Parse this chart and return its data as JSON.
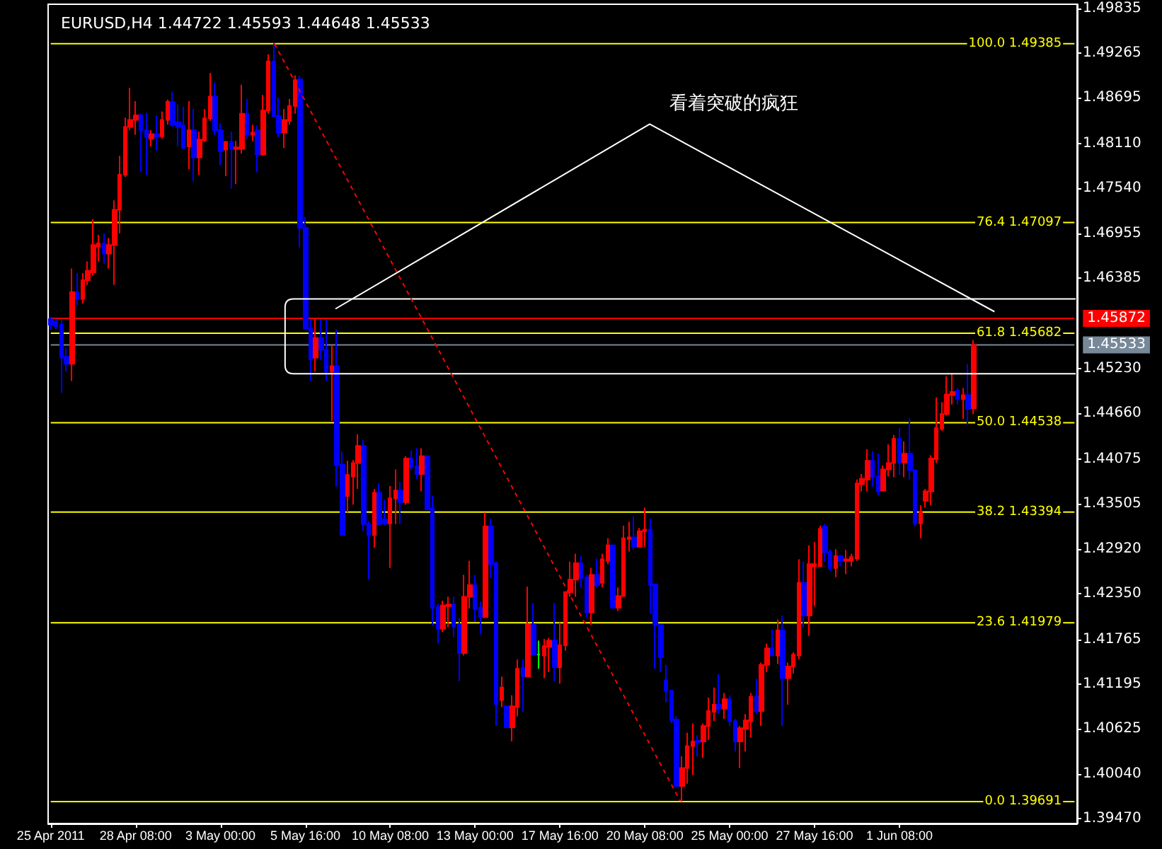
{
  "chart_data": {
    "type": "candlestick",
    "title": "EURUSD,H4 1.44722 1.45593 1.44648 1.45533",
    "annotations": [
      "看着突破的疯狂"
    ],
    "categories": [
      "25 Apr 2011",
      null,
      null,
      null,
      null,
      null,
      null,
      null,
      null,
      null,
      null,
      null,
      null,
      null,
      null,
      null,
      "28 Apr 08:00",
      null,
      null,
      null,
      null,
      null,
      null,
      null,
      null,
      null,
      null,
      null,
      null,
      null,
      null,
      null,
      "3 May 00:00",
      null,
      null,
      null,
      null,
      null,
      null,
      null,
      null,
      null,
      null,
      null,
      null,
      null,
      null,
      null,
      "5 May 16:00",
      null,
      null,
      null,
      null,
      null,
      null,
      null,
      null,
      null,
      null,
      null,
      null,
      null,
      null,
      null,
      "10 May 08:00",
      null,
      null,
      null,
      null,
      null,
      null,
      null,
      null,
      null,
      null,
      null,
      null,
      null,
      null,
      null,
      "13 May 00:00",
      null,
      null,
      null,
      null,
      null,
      null,
      null,
      null,
      null,
      null,
      null,
      null,
      null,
      null,
      null,
      "17 May 16:00",
      null,
      null,
      null,
      null,
      null,
      null,
      null,
      null,
      null,
      null,
      null,
      null,
      null,
      null,
      null,
      "20 May 08:00",
      null,
      null,
      null,
      null,
      null,
      null,
      null,
      null,
      null,
      null,
      null,
      null,
      null,
      null,
      null,
      "25 May 00:00",
      null,
      null,
      null,
      null,
      null,
      null,
      null,
      null,
      null,
      null,
      null,
      null,
      null,
      null,
      null,
      "27 May 16:00",
      null,
      null,
      null,
      null,
      null,
      null,
      null,
      null,
      null,
      null,
      null,
      null,
      null,
      null,
      null,
      "1 Jun 08:00",
      null,
      null,
      null,
      null,
      null,
      null,
      null,
      null,
      null,
      null,
      null,
      null,
      null,
      null,
      null,
      null,
      null,
      null,
      null,
      null,
      null,
      null,
      null,
      null,
      null,
      null,
      null,
      null,
      null,
      null,
      null,
      null,
      null
    ],
    "ylim": [
      1.3941,
      1.4989
    ],
    "yticks": [
      1.49835,
      1.49265,
      1.48695,
      {
        "value": 1.4811,
        "label": "1.48110"
      },
      {
        "value": 1.4754,
        "label": "1.47540"
      },
      1.46955,
      1.46385,
      {
        "value": 1.4523,
        "label": "1.45230"
      },
      {
        "value": 1.4466,
        "label": "1.44660"
      },
      1.44075,
      1.43505,
      {
        "value": 1.4292,
        "label": "1.42920"
      },
      {
        "value": 1.4235,
        "label": "1.42350"
      },
      1.41765,
      1.41195,
      1.40625,
      {
        "value": 1.4004,
        "label": "1.40040"
      },
      {
        "value": 1.3947,
        "label": "1.39470"
      }
    ],
    "ohlc": [
      [
        1.4586,
        1.4589,
        1.4573,
        1.4579
      ],
      [
        1.4583,
        1.4587,
        1.4573,
        1.4577
      ],
      [
        1.4579,
        1.4585,
        1.4492,
        1.4537
      ],
      [
        1.4538,
        1.4549,
        1.4519,
        1.4529
      ],
      [
        1.4529,
        1.4651,
        1.4507,
        1.4621
      ],
      [
        1.4621,
        1.4645,
        1.4603,
        1.4612
      ],
      [
        1.4612,
        1.4645,
        1.4606,
        1.4636
      ],
      [
        1.4636,
        1.466,
        1.463,
        1.4648
      ],
      [
        1.4646,
        1.4714,
        1.4642,
        1.4681
      ],
      [
        1.4679,
        1.4694,
        1.466,
        1.4683
      ],
      [
        1.4683,
        1.4696,
        1.4657,
        1.467
      ],
      [
        1.467,
        1.469,
        1.4651,
        1.4681
      ],
      [
        1.4681,
        1.4738,
        1.463,
        1.4726
      ],
      [
        1.4726,
        1.4795,
        1.4696,
        1.4771
      ],
      [
        1.4771,
        1.4844,
        1.4768,
        1.4832
      ],
      [
        1.4832,
        1.4882,
        1.4828,
        1.4841
      ],
      [
        1.4841,
        1.4865,
        1.4822,
        1.4847
      ],
      [
        1.4847,
        1.4849,
        1.4774,
        1.4828
      ],
      [
        1.4828,
        1.485,
        1.4771,
        1.4819
      ],
      [
        1.4817,
        1.4828,
        1.4807,
        1.4823
      ],
      [
        1.4823,
        1.4847,
        1.4802,
        1.482
      ],
      [
        1.482,
        1.4852,
        1.4817,
        1.4841
      ],
      [
        1.4841,
        1.4867,
        1.4835,
        1.4864
      ],
      [
        1.4864,
        1.4877,
        1.4832,
        1.4835
      ],
      [
        1.4838,
        1.4861,
        1.4807,
        1.4832
      ],
      [
        1.4834,
        1.4858,
        1.4804,
        1.4805
      ],
      [
        1.4807,
        1.4865,
        1.4778,
        1.4828
      ],
      [
        1.4828,
        1.4855,
        1.4762,
        1.4793
      ],
      [
        1.4793,
        1.4826,
        1.4771,
        1.4816
      ],
      [
        1.4815,
        1.4855,
        1.4813,
        1.4843
      ],
      [
        1.4843,
        1.4901,
        1.484,
        1.4871
      ],
      [
        1.4871,
        1.4889,
        1.4822,
        1.4828
      ],
      [
        1.4828,
        1.4837,
        1.4783,
        1.4801
      ],
      [
        1.4803,
        1.4814,
        1.4769,
        1.4813
      ],
      [
        1.4813,
        1.4826,
        1.4753,
        1.4804
      ],
      [
        1.4804,
        1.4814,
        1.4759,
        1.4806
      ],
      [
        1.4804,
        1.4886,
        1.4798,
        1.4849
      ],
      [
        1.4849,
        1.4868,
        1.4817,
        1.4822
      ],
      [
        1.4822,
        1.4835,
        1.4814,
        1.4825
      ],
      [
        1.4828,
        1.4834,
        1.4774,
        1.4797
      ],
      [
        1.4797,
        1.4873,
        1.4795,
        1.4853
      ],
      [
        1.4853,
        1.4925,
        1.4849,
        1.4916
      ],
      [
        1.4916,
        1.4939,
        1.4845,
        1.4846
      ],
      [
        1.4846,
        1.487,
        1.4819,
        1.4825
      ],
      [
        1.4825,
        1.4855,
        1.4805,
        1.4841
      ],
      [
        1.484,
        1.4868,
        1.4835,
        1.4859
      ],
      [
        1.4859,
        1.4898,
        1.4849,
        1.4892
      ],
      [
        1.4893,
        1.4898,
        1.4678,
        1.4703
      ],
      [
        1.4703,
        1.4717,
        1.4573,
        1.4574
      ],
      [
        1.4574,
        1.4586,
        1.4507,
        1.4535
      ],
      [
        1.4537,
        1.4586,
        1.4519,
        1.4562
      ],
      [
        1.4562,
        1.4586,
        1.4534,
        1.4547
      ],
      [
        1.4547,
        1.4586,
        1.4507,
        1.4519
      ],
      [
        1.4519,
        1.4552,
        1.4456,
        1.4526
      ],
      [
        1.4526,
        1.4573,
        1.4372,
        1.44
      ],
      [
        1.44,
        1.4417,
        1.431,
        1.431
      ],
      [
        1.436,
        1.4405,
        1.4339,
        1.4387
      ],
      [
        1.4385,
        1.4406,
        1.4349,
        1.4402
      ],
      [
        1.4402,
        1.4439,
        1.4369,
        1.4424
      ],
      [
        1.4424,
        1.4432,
        1.4315,
        1.4324
      ],
      [
        1.4324,
        1.4328,
        1.4253,
        1.431
      ],
      [
        1.431,
        1.4369,
        1.4294,
        1.4364
      ],
      [
        1.4364,
        1.4376,
        1.4323,
        1.4324
      ],
      [
        1.433,
        1.4355,
        1.4323,
        1.4325
      ],
      [
        1.4325,
        1.4373,
        1.4268,
        1.4357
      ],
      [
        1.4357,
        1.4394,
        1.4324,
        1.4367
      ],
      [
        1.4367,
        1.4378,
        1.4324,
        1.4352
      ],
      [
        1.4352,
        1.4411,
        1.4349,
        1.4408
      ],
      [
        1.4408,
        1.4418,
        1.4393,
        1.4397
      ],
      [
        1.4398,
        1.4421,
        1.4382,
        1.4388
      ],
      [
        1.4388,
        1.4421,
        1.4366,
        1.4411
      ],
      [
        1.4411,
        1.4412,
        1.4342,
        1.4343
      ],
      [
        1.4344,
        1.436,
        1.4195,
        1.4217
      ],
      [
        1.4218,
        1.4222,
        1.4171,
        1.419
      ],
      [
        1.419,
        1.4226,
        1.4186,
        1.422
      ],
      [
        1.4219,
        1.4231,
        1.4192,
        1.4221
      ],
      [
        1.4221,
        1.4231,
        1.418,
        1.4193
      ],
      [
        1.4196,
        1.4204,
        1.4123,
        1.4159
      ],
      [
        1.4159,
        1.4259,
        1.4156,
        1.4231
      ],
      [
        1.4231,
        1.4277,
        1.4216,
        1.4246
      ],
      [
        1.4246,
        1.4259,
        1.4199,
        1.4216
      ],
      [
        1.4217,
        1.4225,
        1.4183,
        1.4205
      ],
      [
        1.4205,
        1.4339,
        1.4204,
        1.4321
      ],
      [
        1.4321,
        1.4331,
        1.4256,
        1.4273
      ],
      [
        1.4274,
        1.4276,
        1.4066,
        1.4094
      ],
      [
        1.4099,
        1.4129,
        1.409,
        1.4115
      ],
      [
        1.4091,
        1.4092,
        1.4063,
        1.4064
      ],
      [
        1.4064,
        1.4105,
        1.4046,
        1.4091
      ],
      [
        1.409,
        1.4151,
        1.4078,
        1.4139
      ],
      [
        1.414,
        1.4151,
        1.4084,
        1.4129
      ],
      [
        1.4129,
        1.4244,
        1.4128,
        1.4196
      ],
      [
        1.4196,
        1.4223,
        1.4156,
        1.4157
      ],
      [
        1.4157,
        1.4175,
        1.4139,
        1.4157
      ],
      [
        1.4156,
        1.4177,
        1.4127,
        1.4168
      ],
      [
        1.4167,
        1.4178,
        1.4135,
        1.4175
      ],
      [
        1.4175,
        1.4223,
        1.4123,
        1.4141
      ],
      [
        1.4141,
        1.4198,
        1.412,
        1.4169
      ],
      [
        1.4169,
        1.4238,
        1.4162,
        1.4237
      ],
      [
        1.4237,
        1.4276,
        1.4231,
        1.4253
      ],
      [
        1.4253,
        1.4286,
        1.4231,
        1.4274
      ],
      [
        1.4274,
        1.4283,
        1.4243,
        1.4255
      ],
      [
        1.4256,
        1.4259,
        1.4204,
        1.4211
      ],
      [
        1.4211,
        1.4268,
        1.4195,
        1.4259
      ],
      [
        1.4259,
        1.428,
        1.4243,
        1.4246
      ],
      [
        1.4249,
        1.4286,
        1.4243,
        1.4279
      ],
      [
        1.4277,
        1.4306,
        1.4273,
        1.4297
      ],
      [
        1.4297,
        1.4298,
        1.4216,
        1.4217
      ],
      [
        1.4217,
        1.4243,
        1.4213,
        1.4232
      ],
      [
        1.4232,
        1.4322,
        1.4231,
        1.4306
      ],
      [
        1.4305,
        1.4327,
        1.4289,
        1.4307
      ],
      [
        1.4307,
        1.4334,
        1.4291,
        1.4295
      ],
      [
        1.4295,
        1.4319,
        1.4294,
        1.4315
      ],
      [
        1.4315,
        1.4345,
        1.4295,
        1.4317
      ],
      [
        1.4317,
        1.4331,
        1.421,
        1.4246
      ],
      [
        1.4247,
        1.4248,
        1.4139,
        1.4195
      ],
      [
        1.4195,
        1.4196,
        1.4135,
        1.4154
      ],
      [
        1.4124,
        1.4144,
        1.4096,
        1.4111
      ],
      [
        1.4111,
        1.4112,
        1.4069,
        1.4073
      ],
      [
        1.4074,
        1.4078,
        1.3988,
        1.3989
      ],
      [
        1.3989,
        1.4027,
        1.3969,
        1.4012
      ],
      [
        1.4012,
        1.4057,
        1.3992,
        1.404
      ],
      [
        1.404,
        1.4069,
        1.4003,
        1.4046
      ],
      [
        1.4047,
        1.4054,
        1.4027,
        1.4045
      ],
      [
        1.4046,
        1.4069,
        1.4025,
        1.4066
      ],
      [
        1.4066,
        1.4102,
        1.4048,
        1.4085
      ],
      [
        1.4084,
        1.4115,
        1.4072,
        1.4093
      ],
      [
        1.4093,
        1.4132,
        1.4081,
        1.4088
      ],
      [
        1.4088,
        1.4108,
        1.4075,
        1.41
      ],
      [
        1.41,
        1.4105,
        1.4066,
        1.4072
      ],
      [
        1.4072,
        1.4075,
        1.4033,
        1.4046
      ],
      [
        1.4046,
        1.4066,
        1.4012,
        1.4063
      ],
      [
        1.4062,
        1.4081,
        1.4033,
        1.4073
      ],
      [
        1.4072,
        1.4108,
        1.4051,
        1.4103
      ],
      [
        1.4104,
        1.4126,
        1.4081,
        1.4085
      ],
      [
        1.4085,
        1.4147,
        1.4066,
        1.4144
      ],
      [
        1.4144,
        1.4171,
        1.4135,
        1.4165
      ],
      [
        1.4165,
        1.4189,
        1.4155,
        1.4156
      ],
      [
        1.4156,
        1.4202,
        1.4145,
        1.4188
      ],
      [
        1.4188,
        1.4207,
        1.4066,
        1.4127
      ],
      [
        1.4127,
        1.4147,
        1.4093,
        1.4142
      ],
      [
        1.4142,
        1.416,
        1.4133,
        1.4157
      ],
      [
        1.4156,
        1.4279,
        1.4151,
        1.4249
      ],
      [
        1.4249,
        1.4276,
        1.4192,
        1.4207
      ],
      [
        1.4207,
        1.4297,
        1.4181,
        1.4273
      ],
      [
        1.427,
        1.4301,
        1.4219,
        1.4273
      ],
      [
        1.427,
        1.4322,
        1.4269,
        1.4318
      ],
      [
        1.4321,
        1.4324,
        1.4276,
        1.4288
      ],
      [
        1.4288,
        1.4292,
        1.4264,
        1.4268
      ],
      [
        1.4268,
        1.4292,
        1.4256,
        1.4283
      ],
      [
        1.4283,
        1.4285,
        1.427,
        1.4277
      ],
      [
        1.4277,
        1.4291,
        1.426,
        1.4279
      ],
      [
        1.4277,
        1.4286,
        1.427,
        1.4282
      ],
      [
        1.428,
        1.4381,
        1.4277,
        1.4376
      ],
      [
        1.4375,
        1.4388,
        1.4366,
        1.4382
      ],
      [
        1.4381,
        1.442,
        1.4366,
        1.4405
      ],
      [
        1.4405,
        1.4417,
        1.4372,
        1.4385
      ],
      [
        1.4385,
        1.4414,
        1.4361,
        1.4366
      ],
      [
        1.4367,
        1.4399,
        1.4366,
        1.4394
      ],
      [
        1.4394,
        1.4426,
        1.4385,
        1.4402
      ],
      [
        1.4402,
        1.4438,
        1.4384,
        1.4433
      ],
      [
        1.4433,
        1.4447,
        1.4387,
        1.4402
      ],
      [
        1.4403,
        1.443,
        1.4384,
        1.4414
      ],
      [
        1.4414,
        1.4459,
        1.4381,
        1.4393
      ],
      [
        1.4393,
        1.4394,
        1.4321,
        1.4325
      ],
      [
        1.4325,
        1.4348,
        1.4306,
        1.4339
      ],
      [
        1.4354,
        1.4369,
        1.4345,
        1.4366
      ],
      [
        1.4366,
        1.4412,
        1.4348,
        1.4408
      ],
      [
        1.4407,
        1.4486,
        1.4402,
        1.4447
      ],
      [
        1.4446,
        1.448,
        1.4443,
        1.4465
      ],
      [
        1.4465,
        1.4513,
        1.4463,
        1.449
      ],
      [
        1.4489,
        1.4516,
        1.4477,
        1.4493
      ],
      [
        1.4495,
        1.4498,
        1.4477,
        1.4484
      ],
      [
        1.4484,
        1.4498,
        1.4459,
        1.4489
      ],
      [
        1.4489,
        1.4529,
        1.4451,
        1.4471
      ],
      [
        1.44722,
        1.45593,
        1.44648,
        1.45533
      ],
      null,
      null,
      null,
      null,
      null,
      null,
      null,
      null,
      null,
      null,
      null,
      null,
      null,
      null,
      null,
      null,
      null,
      null,
      null
    ],
    "colors": [
      "#0000ff",
      "#0000ff",
      "#0000ff",
      "#0000ff",
      "#ff0000",
      "#0000ff",
      "#ff0000",
      "#ff0000",
      "#ff0000",
      "#ff0000",
      "#0000ff",
      "#ff0000",
      "#ff0000",
      "#ff0000",
      "#ff0000",
      "#ff0000",
      "#ff0000",
      "#0000ff",
      "#0000ff",
      "#ff0000",
      "#0000ff",
      "#ff0000",
      "#ff0000",
      "#0000ff",
      "#0000ff",
      "#0000ff",
      "#ff0000",
      "#0000ff",
      "#ff0000",
      "#ff0000",
      "#ff0000",
      "#0000ff",
      "#0000ff",
      "#ff0000",
      "#0000ff",
      "#ff0000",
      "#ff0000",
      "#0000ff",
      "#ff0000",
      "#0000ff",
      "#ff0000",
      "#ff0000",
      "#0000ff",
      "#0000ff",
      "#ff0000",
      "#ff0000",
      "#ff0000",
      "#0000ff",
      "#0000ff",
      "#0000ff",
      "#ff0000",
      "#0000ff",
      "#0000ff",
      "#ff0000",
      "#0000ff",
      "#0000ff",
      "#ff0000",
      "#ff0000",
      "#ff0000",
      "#0000ff",
      "#0000ff",
      "#ff0000",
      "#0000ff",
      "#0000ff",
      "#ff0000",
      "#ff0000",
      "#0000ff",
      "#ff0000",
      "#0000ff",
      "#0000ff",
      "#ff0000",
      "#0000ff",
      "#0000ff",
      "#0000ff",
      "#ff0000",
      "#ff0000",
      "#0000ff",
      "#0000ff",
      "#ff0000",
      "#ff0000",
      "#0000ff",
      "#0000ff",
      "#ff0000",
      "#0000ff",
      "#0000ff",
      "#ff0000",
      "#0000ff",
      "#ff0000",
      "#ff0000",
      "#0000ff",
      "#ff0000",
      "#0000ff",
      "#00ff00",
      "#ff0000",
      "#ff0000",
      "#0000ff",
      "#ff0000",
      "#ff0000",
      "#ff0000",
      "#ff0000",
      "#0000ff",
      "#0000ff",
      "#ff0000",
      "#0000ff",
      "#ff0000",
      "#ff0000",
      "#0000ff",
      "#ff0000",
      "#ff0000",
      "#ff0000",
      "#0000ff",
      "#ff0000",
      "#ff0000",
      "#0000ff",
      "#0000ff",
      "#0000ff",
      "#0000ff",
      "#0000ff",
      "#0000ff",
      "#ff0000",
      "#ff0000",
      "#ff0000",
      "#0000ff",
      "#ff0000",
      "#ff0000",
      "#ff0000",
      "#0000ff",
      "#ff0000",
      "#0000ff",
      "#0000ff",
      "#ff0000",
      "#ff0000",
      "#ff0000",
      "#0000ff",
      "#ff0000",
      "#ff0000",
      "#0000ff",
      "#ff0000",
      "#0000ff",
      "#ff0000",
      "#ff0000",
      "#ff0000",
      "#0000ff",
      "#ff0000",
      "#ff0000",
      "#ff0000",
      "#0000ff",
      "#0000ff",
      "#ff0000",
      "#0000ff",
      "#ff0000",
      "#ff0000",
      "#ff0000",
      "#ff0000",
      "#ff0000",
      "#0000ff",
      "#0000ff",
      "#ff0000",
      "#ff0000",
      "#ff0000",
      "#0000ff",
      "#ff0000",
      "#0000ff",
      "#0000ff",
      "#ff0000",
      "#ff0000",
      "#ff0000",
      "#ff0000",
      "#ff0000",
      "#ff0000",
      "#ff0000",
      "#0000ff",
      "#ff0000",
      "#0000ff",
      "#ff0000",
      null,
      null,
      null,
      null,
      null,
      null,
      null,
      null,
      null,
      null,
      null,
      null,
      null,
      null,
      null,
      null,
      null,
      null,
      null
    ],
    "ref_lines": [
      {
        "axis": "y",
        "value": 1.49385,
        "label": "100.0 1.49385",
        "color": "#ffff00"
      },
      {
        "axis": "y",
        "value": 1.47097,
        "label": "76.4 1.47097",
        "color": "#ffff00"
      },
      {
        "axis": "y",
        "value": 1.45682,
        "label": "61.8 1.45682",
        "color": "#ffff00"
      },
      {
        "axis": "y",
        "value": 1.44538,
        "label": "50.0 1.44538",
        "color": "#ffff00"
      },
      {
        "axis": "y",
        "value": 1.43394,
        "label": "38.2 1.43394",
        "color": "#ffff00"
      },
      {
        "axis": "y",
        "value": 1.41979,
        "label": "23.6 1.41979",
        "color": "#ffff00"
      },
      {
        "axis": "y",
        "value": 1.39691,
        "label": "0.0 1.39691",
        "color": "#ffff00"
      },
      {
        "axis": "y",
        "value": 1.45872,
        "label": "1.45872",
        "color": "#ff0000"
      },
      {
        "axis": "y",
        "value": 1.45533,
        "label": "1.45533",
        "color": "#778899"
      }
    ]
  }
}
